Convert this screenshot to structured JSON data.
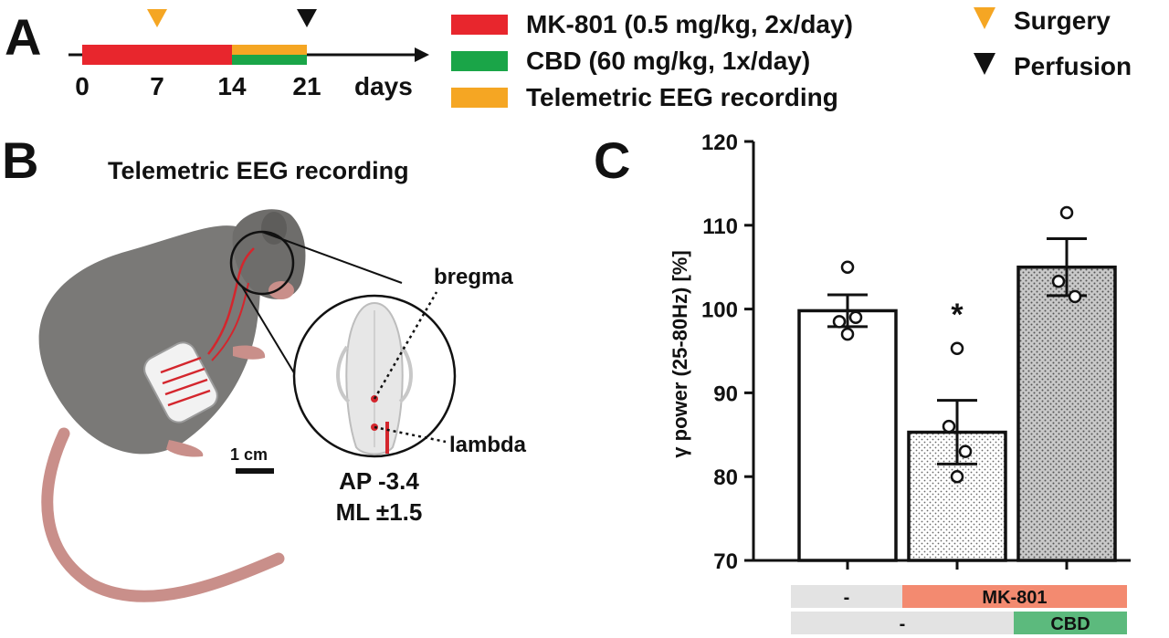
{
  "panel_a": {
    "letter": "A",
    "ticks": [
      "0",
      "7",
      "14",
      "21"
    ],
    "tick_values": [
      0,
      7,
      14,
      21
    ],
    "unit": "days",
    "segments": [
      {
        "from": 0,
        "to": 14,
        "color": "#e8262d"
      },
      {
        "from": 14,
        "to": 21,
        "color": "#1aa548"
      },
      {
        "from": 14,
        "to": 21,
        "color": "#f5a623"
      }
    ],
    "markers": [
      {
        "day": 7,
        "color": "#f5a623"
      },
      {
        "day": 21,
        "color": "#111111"
      }
    ],
    "legend": [
      {
        "label": "MK-801 (0.5 mg/kg, 2x/day)",
        "color": "#e8262d"
      },
      {
        "label": "CBD (60 mg/kg, 1x/day)",
        "color": "#1aa548"
      },
      {
        "label": "Telemetric EEG recording",
        "color": "#f5a623"
      }
    ],
    "marker_legend": [
      {
        "label": "Surgery",
        "color": "#f5a623"
      },
      {
        "label": "Perfusion",
        "color": "#111111"
      }
    ]
  },
  "panel_b": {
    "letter": "B",
    "title": "Telemetric EEG recording",
    "label_bregma": "bregma",
    "label_lambda": "lambda",
    "scale_bar": "1 cm",
    "coord_ap": "AP -3.4",
    "coord_ml": "ML ±1.5"
  },
  "panel_c": {
    "letter": "C",
    "significance": "*"
  },
  "chart_data": {
    "type": "bar",
    "ylabel": "γ power (25-80Hz) [%]",
    "ylim": [
      70,
      120
    ],
    "yticks": [
      70,
      80,
      90,
      100,
      110,
      120
    ],
    "ytick_labels": [
      "70",
      "80",
      "90",
      "100",
      "110",
      "120"
    ],
    "bars": [
      {
        "mean": 99.8,
        "sem": 1.9,
        "points": [
          105.0,
          98.5,
          99.0,
          97.0
        ],
        "fill": "white"
      },
      {
        "mean": 85.3,
        "sem": 3.8,
        "points": [
          95.3,
          86.0,
          83.0,
          80.0
        ],
        "fill": "dots-light"
      },
      {
        "mean": 105.0,
        "sem": 3.4,
        "points": [
          111.5,
          103.3,
          101.5
        ],
        "fill": "dots-dark"
      }
    ],
    "treatment_rows": [
      {
        "segments": [
          {
            "label": "-",
            "span": [
              0,
              1
            ],
            "color": "#e3e3e3"
          },
          {
            "label": "MK-801",
            "span": [
              1,
              3
            ],
            "color": "#f38a70"
          }
        ]
      },
      {
        "segments": [
          {
            "label": "-",
            "span": [
              0,
              2
            ],
            "color": "#e3e3e3"
          },
          {
            "label": "CBD",
            "span": [
              2,
              3
            ],
            "color": "#5cba7d"
          }
        ]
      }
    ]
  }
}
